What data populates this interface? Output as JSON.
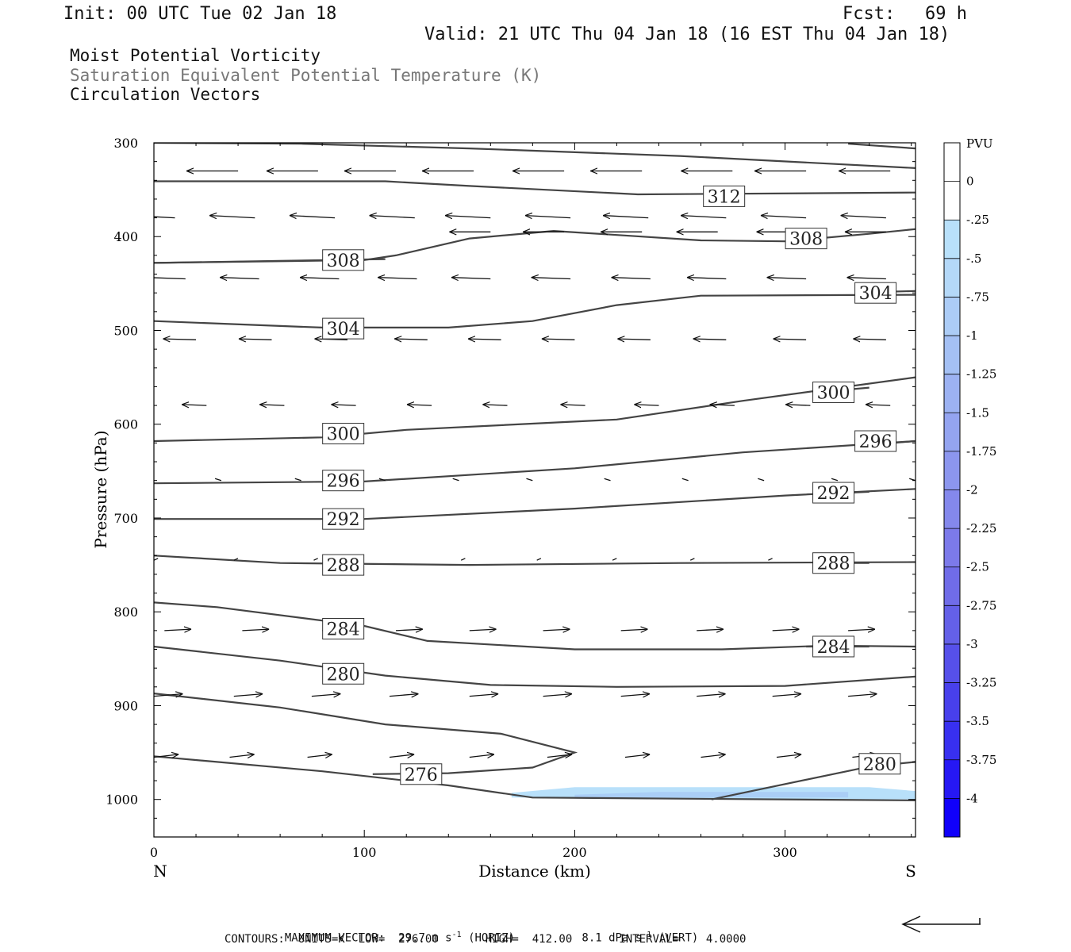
{
  "header": {
    "init": "Init: 00 UTC Tue 02 Jan 18",
    "fcst_label": "Fcst:",
    "fcst_value": "69 h",
    "valid": "Valid: 21 UTC Thu 04 Jan 18 (16 EST Thu 04 Jan 18)"
  },
  "legend": {
    "line1": "Moist Potential Vorticity",
    "line2": "Saturation Equivalent Potential Temperature (K)",
    "line3": "Circulation Vectors"
  },
  "footer": {
    "max_vector_label": "MAXIMUM VECTOR:",
    "horiz_value": "29.7 m s",
    "horiz_unit": "(HORIZ)",
    "vert_value": "8.1 dPa s",
    "vert_unit": "(VERT)",
    "exp": "-1",
    "contours": "CONTOURS:  UNITS=K  LOW=  276.00       HIGH=  412.00       INTERVAL=    4.0000"
  },
  "colors": {
    "contour": "#444444",
    "pv_shade_light": "#b8e0fa",
    "pv_shade_mid": "#a6c8f4",
    "background": "#ffffff"
  },
  "chart_data": {
    "type": "cross-section",
    "xlabel": "Distance (km)",
    "ylabel": "Pressure (hPa)",
    "xlim": [
      0,
      362
    ],
    "ylim": [
      300,
      1040
    ],
    "y_scale": "linear-inverted",
    "x_ticks": [
      0,
      100,
      200,
      300
    ],
    "y_ticks": [
      300,
      400,
      500,
      600,
      700,
      800,
      900,
      1000
    ],
    "x_end_labels": {
      "left": "N",
      "right": "S"
    },
    "colorbar": {
      "unit": "PVU",
      "ticks": [
        "0",
        "-.25",
        "-.5",
        "-.75",
        "-1",
        "-1.25",
        "-1.5",
        "-1.75",
        "-2",
        "-2.25",
        "-2.5",
        "-2.75",
        "-3",
        "-3.25",
        "-3.5",
        "-3.75",
        "-4"
      ],
      "colors": [
        "#ffffff",
        "#ffffff",
        "#b8e0fa",
        "#b4d8f8",
        "#acccf6",
        "#a4c0f4",
        "#9cb2f2",
        "#94a4f0",
        "#8c96ee",
        "#8488ec",
        "#7c7aea",
        "#706ce8",
        "#6460e8",
        "#5650ea",
        "#4840ec",
        "#3830f0",
        "#2618f4",
        "#1000fa"
      ]
    },
    "pv_shading": [
      {
        "level": -0.25,
        "points": [
          [
            170,
            993
          ],
          [
            200,
            987
          ],
          [
            340,
            987
          ],
          [
            362,
            991
          ],
          [
            362,
            1000
          ],
          [
            170,
            998
          ]
        ]
      },
      {
        "level": -0.5,
        "points": [
          [
            200,
            995
          ],
          [
            240,
            992
          ],
          [
            330,
            992
          ],
          [
            330,
            998
          ],
          [
            200,
            998
          ]
        ]
      }
    ],
    "contours": [
      {
        "value": 312,
        "points": [
          [
            0,
            341
          ],
          [
            110,
            341
          ],
          [
            150,
            346
          ],
          [
            230,
            355
          ],
          [
            362,
            353
          ]
        ],
        "label_at": [
          271,
          357
        ]
      },
      {
        "value": 312,
        "points": [
          [
            0,
            300
          ],
          [
            70,
            301
          ],
          [
            150,
            306
          ],
          [
            250,
            314
          ],
          [
            362,
            327
          ]
        ]
      },
      {
        "value": 312,
        "points": [
          [
            330,
            301
          ],
          [
            362,
            306
          ]
        ]
      },
      {
        "value": 308,
        "points": [
          [
            0,
            428
          ],
          [
            100,
            425
          ],
          [
            115,
            420
          ],
          [
            150,
            402
          ],
          [
            190,
            394
          ],
          [
            260,
            404
          ],
          [
            300,
            405
          ],
          [
            340,
            397
          ],
          [
            362,
            392
          ]
        ],
        "label_at": [
          310,
          402
        ]
      },
      {
        "value": 308,
        "points": [
          [
            0,
            428
          ],
          [
            110,
            424
          ]
        ],
        "label_at": [
          90,
          425
        ]
      },
      {
        "value": 304,
        "points": [
          [
            0,
            490
          ],
          [
            80,
            497
          ],
          [
            140,
            497
          ],
          [
            180,
            490
          ],
          [
            220,
            473
          ],
          [
            260,
            463
          ],
          [
            362,
            462
          ]
        ],
        "label_at": [
          90,
          498
        ]
      },
      {
        "value": 304,
        "points": [
          [
            345,
            459
          ],
          [
            362,
            458
          ]
        ],
        "label_at": [
          343,
          460
        ]
      },
      {
        "value": 300,
        "points": [
          [
            0,
            618
          ],
          [
            80,
            614
          ],
          [
            120,
            606
          ],
          [
            220,
            595
          ],
          [
            280,
            575
          ],
          [
            362,
            550
          ]
        ],
        "label_at": [
          90,
          610
        ]
      },
      {
        "value": 300,
        "points": [
          [
            320,
            565
          ],
          [
            340,
            561
          ]
        ],
        "label_at": [
          323,
          566
        ]
      },
      {
        "value": 296,
        "points": [
          [
            0,
            663
          ],
          [
            100,
            661
          ],
          [
            200,
            647
          ],
          [
            280,
            630
          ],
          [
            362,
            618
          ]
        ],
        "label_at": [
          90,
          660
        ]
      },
      {
        "value": 296,
        "points": [
          [
            345,
            621
          ],
          [
            362,
            618
          ]
        ],
        "label_at": [
          343,
          618
        ]
      },
      {
        "value": 292,
        "points": [
          [
            0,
            701
          ],
          [
            100,
            701
          ],
          [
            200,
            690
          ],
          [
            300,
            676
          ],
          [
            362,
            669
          ]
        ],
        "label_at": [
          90,
          701
        ]
      },
      {
        "value": 292,
        "points": [
          [
            322,
            674
          ],
          [
            340,
            672
          ]
        ],
        "label_at": [
          323,
          673
        ]
      },
      {
        "value": 288,
        "points": [
          [
            0,
            740
          ],
          [
            60,
            748
          ],
          [
            150,
            750
          ],
          [
            250,
            748
          ],
          [
            362,
            747
          ]
        ],
        "label_at": [
          90,
          750
        ]
      },
      {
        "value": 288,
        "points": [
          [
            320,
            748
          ],
          [
            340,
            748
          ]
        ],
        "label_at": [
          323,
          748
        ]
      },
      {
        "value": 284,
        "points": [
          [
            0,
            790
          ],
          [
            30,
            795
          ],
          [
            100,
            815
          ],
          [
            130,
            831
          ],
          [
            200,
            840
          ],
          [
            270,
            840
          ],
          [
            320,
            836
          ],
          [
            362,
            837
          ]
        ],
        "label_at": [
          90,
          818
        ]
      },
      {
        "value": 284,
        "points": [
          [
            310,
            837
          ],
          [
            340,
            837
          ]
        ],
        "label_at": [
          323,
          837
        ]
      },
      {
        "value": 280,
        "points": [
          [
            0,
            837
          ],
          [
            60,
            852
          ],
          [
            110,
            868
          ],
          [
            160,
            878
          ],
          [
            220,
            880
          ],
          [
            300,
            879
          ],
          [
            362,
            869
          ]
        ],
        "label_at": [
          90,
          866
        ]
      },
      {
        "value": 280,
        "points": [
          [
            265,
            1000
          ],
          [
            340,
            965
          ],
          [
            362,
            960
          ]
        ],
        "label_at": [
          345,
          962
        ]
      },
      {
        "value": 276,
        "points": [
          [
            0,
            887
          ],
          [
            60,
            902
          ],
          [
            110,
            920
          ],
          [
            165,
            930
          ],
          [
            200,
            950
          ],
          [
            180,
            966
          ],
          [
            140,
            972
          ],
          [
            104,
            973
          ]
        ],
        "label_at": [
          127,
          973
        ]
      },
      {
        "value": 276,
        "points": [
          [
            0,
            954
          ],
          [
            80,
            970
          ],
          [
            140,
            985
          ],
          [
            180,
            998
          ],
          [
            362,
            1001
          ]
        ]
      }
    ],
    "vectors": [
      {
        "p": 330,
        "x": [
          0,
          40,
          78,
          115,
          152,
          195,
          232,
          275,
          310,
          350
        ],
        "u": -25,
        "w": 0
      },
      {
        "p": 380,
        "x": [
          10,
          48,
          86,
          124,
          160,
          198,
          235,
          272,
          310,
          348
        ],
        "u": -22,
        "w": 0.5
      },
      {
        "p": 395,
        "x": [
          160,
          195,
          232,
          268,
          306,
          348
        ],
        "u": -20,
        "w": 0
      },
      {
        "p": 445,
        "x": [
          15,
          50,
          88,
          125,
          160,
          198,
          236,
          272,
          310,
          348
        ],
        "u": -19,
        "w": 0.3
      },
      {
        "p": 510,
        "x": [
          20,
          56,
          92,
          130,
          165,
          200,
          236,
          272,
          310,
          348
        ],
        "u": -16,
        "w": 0.2
      },
      {
        "p": 580,
        "x": [
          25,
          62,
          96,
          132,
          168,
          205,
          240,
          276,
          312,
          350
        ],
        "u": -12,
        "w": 0.2
      },
      {
        "p": 660,
        "x": [
          32,
          70,
          110,
          145,
          180,
          217,
          254,
          290,
          325,
          362
        ],
        "u": -3,
        "w": 0.4
      },
      {
        "p": 745,
        "x": [
          0,
          38,
          76,
          146,
          182,
          218,
          255,
          292,
          328
        ],
        "u": 2,
        "w": 0.4
      },
      {
        "p": 820,
        "x": [
          5,
          42,
          80,
          115,
          150,
          185,
          222,
          258,
          294,
          330
        ],
        "u": 13,
        "w": 0.3
      },
      {
        "p": 890,
        "x": [
          0,
          38,
          75,
          112,
          150,
          185,
          222,
          258,
          294,
          330
        ],
        "u": 14,
        "w": 0.5
      },
      {
        "p": 955,
        "x": [
          0,
          36,
          73,
          112,
          150,
          187,
          224,
          260,
          296,
          332
        ],
        "u": 12,
        "w": 0.6
      }
    ],
    "ref_vector": {
      "u": -29.7,
      "w": 8.1
    }
  }
}
